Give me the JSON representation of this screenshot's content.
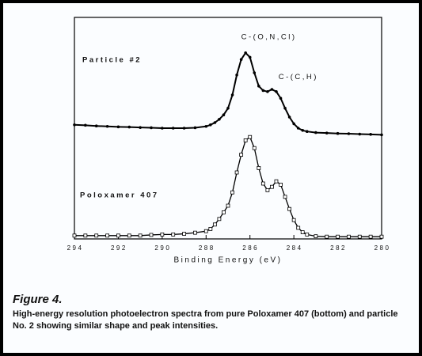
{
  "chart_data": {
    "type": "line",
    "xlabel": "Binding Energy (eV)",
    "annotations": [
      {
        "text": "C-(O,N,Cl)",
        "x": 286.4,
        "y": 91
      },
      {
        "text": "C-(C,H)",
        "x": 284.7,
        "y": 73
      }
    ],
    "x": [
      294,
      293.5,
      293,
      292.5,
      292,
      291.5,
      291,
      290.5,
      290,
      289.5,
      289,
      288.5,
      288,
      287.8,
      287.6,
      287.4,
      287.2,
      287,
      286.8,
      286.6,
      286.4,
      286.2,
      286,
      285.8,
      285.6,
      285.4,
      285.2,
      285,
      284.8,
      284.6,
      284.4,
      284.2,
      284,
      283.8,
      283.6,
      283.4,
      283,
      282.5,
      282,
      281.5,
      281,
      280.5,
      280
    ],
    "series": [
      {
        "name": "Particle #2",
        "color": "#000000",
        "marker": "dot",
        "values": [
          51.5,
          51.3,
          51,
          50.8,
          50.6,
          50.5,
          50.3,
          50.2,
          50,
          50,
          50,
          50.2,
          50.8,
          51.5,
          52.5,
          54,
          56,
          59,
          65,
          74,
          81,
          84,
          82,
          75,
          69,
          67,
          66.5,
          67.5,
          66.5,
          63.5,
          59,
          55,
          52,
          50,
          49,
          48.5,
          48,
          47.8,
          47.6,
          47.5,
          47.3,
          47.2,
          47
        ]
      },
      {
        "name": "Poloxamer 407",
        "color": "#000000",
        "marker": "square",
        "values": [
          1.5,
          1.5,
          1.5,
          1.5,
          1.5,
          1.5,
          1.5,
          1.8,
          2,
          2,
          2.3,
          2.8,
          3.5,
          4.5,
          6.5,
          9,
          12,
          15,
          21,
          30,
          38,
          44.5,
          46,
          41,
          32,
          25,
          22,
          23.5,
          26,
          24.5,
          19,
          13.5,
          8.5,
          5,
          3,
          2,
          1.2,
          1,
          1,
          1,
          1,
          1,
          1
        ]
      }
    ],
    "xlim": [
      294,
      280
    ],
    "ylim": [
      0,
      100
    ],
    "xticks": [
      294,
      292,
      290,
      288,
      286,
      284,
      282,
      280
    ]
  },
  "figure": {
    "label": "Figure 4.",
    "caption": "High-energy resolution photoelectron spectra from pure Poloxamer 407 (bottom) and particle No. 2 showing similar shape and peak intensities."
  }
}
